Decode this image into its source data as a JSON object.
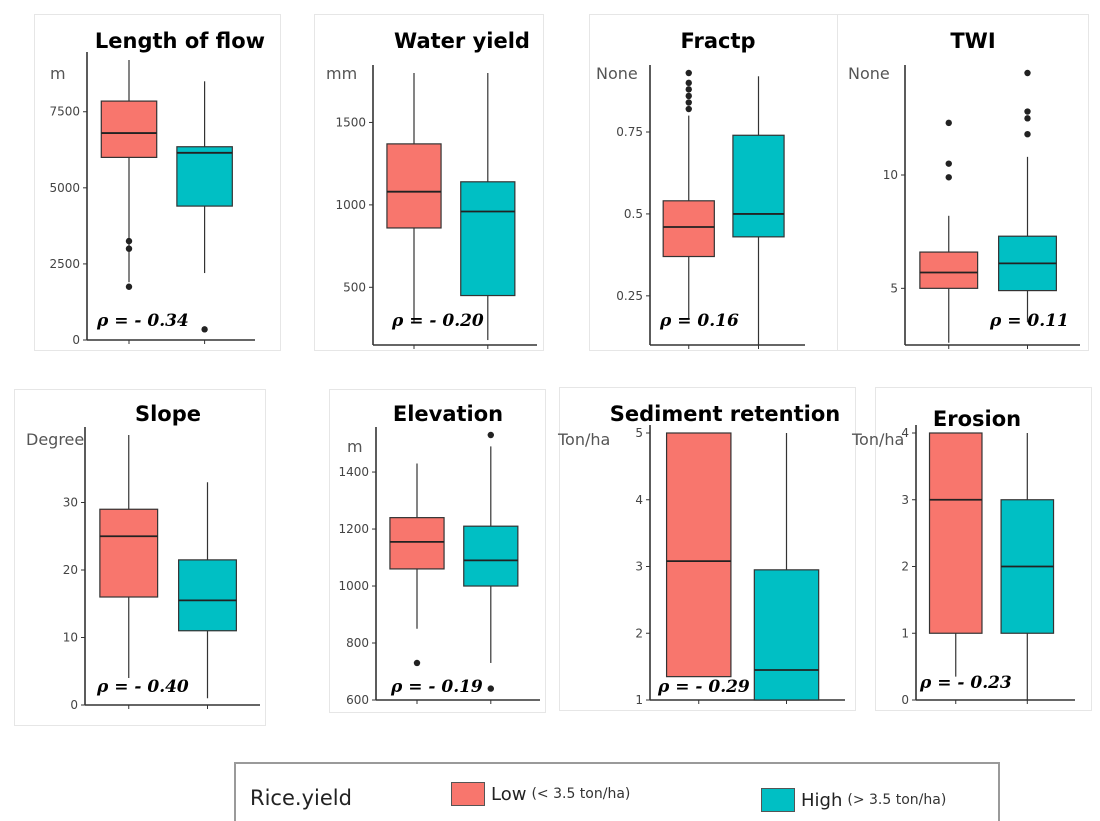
{
  "colors": {
    "low": "#F8766D",
    "high": "#00BFC4"
  },
  "legend": {
    "title": "Rice.yield",
    "items": [
      {
        "label": "Low",
        "note": "(< 3.5 ton/ha)",
        "color": "#F8766D"
      },
      {
        "label": "High",
        "note": "(> 3.5 ton/ha)",
        "color": "#00BFC4"
      }
    ]
  },
  "chart_data": [
    {
      "type": "box",
      "title": "Length of flow",
      "ylabel": "m",
      "annotation": "ρ = - 0.34",
      "ylim": [
        0,
        9200
      ],
      "yticks": [
        0,
        2500,
        5000,
        7500
      ],
      "series": [
        {
          "name": "Low",
          "whisker_low": 1900,
          "q1": 6000,
          "median": 6800,
          "q3": 7850,
          "whisker_high": 9200,
          "outliers": [
            3250,
            3000,
            1750
          ]
        },
        {
          "name": "High",
          "whisker_low": 2200,
          "q1": 4400,
          "median": 6150,
          "q3": 6350,
          "whisker_high": 8500,
          "outliers": [
            350
          ]
        }
      ]
    },
    {
      "type": "box",
      "title": "Water yield",
      "ylabel": "mm",
      "annotation": "ρ = - 0.20",
      "ylim": [
        150,
        1800
      ],
      "yticks": [
        500,
        1000,
        1500
      ],
      "series": [
        {
          "name": "Low",
          "whisker_low": 280,
          "q1": 860,
          "median": 1080,
          "q3": 1370,
          "whisker_high": 1800,
          "outliers": []
        },
        {
          "name": "High",
          "whisker_low": 180,
          "q1": 450,
          "median": 960,
          "q3": 1140,
          "whisker_high": 1800,
          "outliers": []
        }
      ]
    },
    {
      "type": "box",
      "title": "Fractp",
      "ylabel": "None",
      "annotation": "ρ = 0.16",
      "ylim": [
        0.1,
        0.93
      ],
      "yticks": [
        0.25,
        0.5,
        0.75
      ],
      "series": [
        {
          "name": "Low",
          "whisker_low": 0.18,
          "q1": 0.37,
          "median": 0.46,
          "q3": 0.54,
          "whisker_high": 0.8,
          "outliers": [
            0.93,
            0.9,
            0.88,
            0.86,
            0.84,
            0.82
          ]
        },
        {
          "name": "High",
          "whisker_low": 0.1,
          "q1": 0.43,
          "median": 0.5,
          "q3": 0.74,
          "whisker_high": 0.92,
          "outliers": []
        }
      ]
    },
    {
      "type": "box",
      "title": "TWI",
      "ylabel": "None",
      "annotation": "ρ = 0.11",
      "ylim": [
        2.5,
        14.5
      ],
      "yticks": [
        5,
        10
      ],
      "series": [
        {
          "name": "Low",
          "whisker_low": 2.6,
          "q1": 5.0,
          "median": 5.7,
          "q3": 6.6,
          "whisker_high": 8.2,
          "outliers": [
            12.3,
            10.5,
            9.9
          ]
        },
        {
          "name": "High",
          "whisker_low": 3.5,
          "q1": 4.9,
          "median": 6.1,
          "q3": 7.3,
          "whisker_high": 10.8,
          "outliers": [
            14.5,
            12.8,
            12.5,
            11.8
          ]
        }
      ]
    },
    {
      "type": "box",
      "title": "Slope",
      "ylabel": "Degree",
      "annotation": "ρ = - 0.40",
      "ylim": [
        0,
        40
      ],
      "yticks": [
        0,
        10,
        20,
        30
      ],
      "series": [
        {
          "name": "Low",
          "whisker_low": 4,
          "q1": 16,
          "median": 25,
          "q3": 29,
          "whisker_high": 40,
          "outliers": []
        },
        {
          "name": "High",
          "whisker_low": 1,
          "q1": 11,
          "median": 15.5,
          "q3": 21.5,
          "whisker_high": 33,
          "outliers": []
        }
      ]
    },
    {
      "type": "box",
      "title": "Elevation",
      "ylabel": "m",
      "annotation": "ρ = - 0.19",
      "ylim": [
        600,
        1530
      ],
      "yticks": [
        600,
        800,
        1000,
        1200,
        1400
      ],
      "series": [
        {
          "name": "Low",
          "whisker_low": 850,
          "q1": 1060,
          "median": 1155,
          "q3": 1240,
          "whisker_high": 1430,
          "outliers": [
            730
          ]
        },
        {
          "name": "High",
          "whisker_low": 730,
          "q1": 1000,
          "median": 1090,
          "q3": 1210,
          "whisker_high": 1490,
          "outliers": [
            1530,
            640
          ]
        }
      ]
    },
    {
      "type": "box",
      "title": "Sediment retention",
      "ylabel": "Ton/ha",
      "annotation": "ρ = - 0.29",
      "ylim": [
        1,
        5
      ],
      "yticks": [
        1,
        2,
        3,
        4,
        5
      ],
      "series": [
        {
          "name": "Low",
          "whisker_low": 1.35,
          "q1": 1.35,
          "median": 3.08,
          "q3": 5,
          "whisker_high": 5,
          "outliers": []
        },
        {
          "name": "High",
          "whisker_low": 1,
          "q1": 1,
          "median": 1.45,
          "q3": 2.95,
          "whisker_high": 5,
          "outliers": []
        }
      ]
    },
    {
      "type": "box",
      "title": "Erosion",
      "ylabel": "Ton/ha",
      "annotation": "ρ = - 0.23",
      "ylim": [
        0,
        4
      ],
      "yticks": [
        0,
        1,
        2,
        3,
        4
      ],
      "series": [
        {
          "name": "Low",
          "whisker_low": 0.35,
          "q1": 1,
          "median": 3,
          "q3": 4,
          "whisker_high": 4,
          "outliers": []
        },
        {
          "name": "High",
          "whisker_low": 0,
          "q1": 1,
          "median": 2,
          "q3": 3,
          "whisker_high": 4,
          "outliers": []
        }
      ]
    }
  ]
}
